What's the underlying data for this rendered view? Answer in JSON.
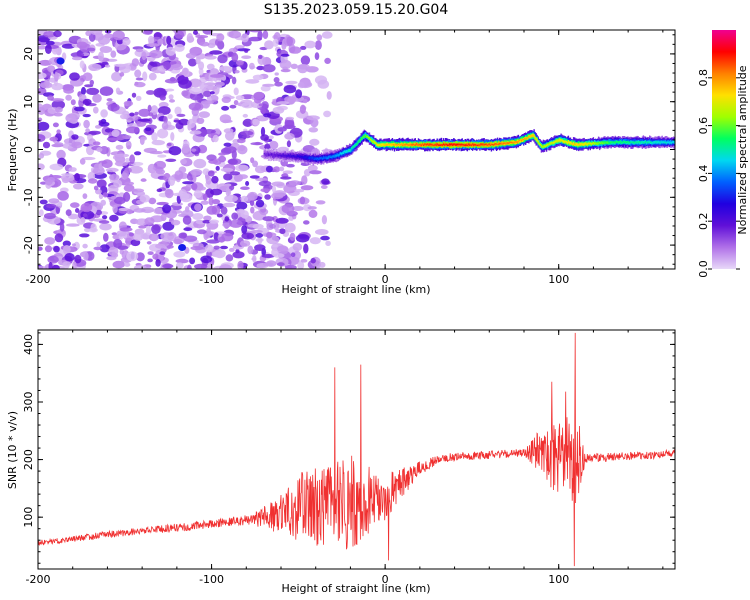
{
  "figure": {
    "title": "S135.2023.059.15.20.G04"
  },
  "chart_data": [
    {
      "type": "heatmap",
      "xlabel": "Height of straight line (km)",
      "ylabel": "Frequency (Hz)",
      "xlim": [
        -200,
        167
      ],
      "ylim": [
        -25,
        25
      ],
      "xticks": [
        -200,
        -100,
        0,
        100
      ],
      "yticks": [
        20,
        10,
        0,
        -10,
        -20
      ],
      "colorbar": {
        "label": "Normalized spectral amplitude",
        "range": [
          0.0,
          1.0
        ],
        "ticks": [
          "0.0",
          "0.2",
          "0.4",
          "0.6",
          "0.8"
        ],
        "colormap": [
          "#e8d8f8",
          "#b070e8",
          "#6010d8",
          "#2000e0",
          "#0060ff",
          "#00d8f0",
          "#00ff60",
          "#a0ff00",
          "#ffe000",
          "#ff8000",
          "#ff0000",
          "#f00090"
        ]
      },
      "noise_region_x": [
        -200,
        -32
      ],
      "ridge": [
        {
          "x": -70,
          "y": -1.0,
          "amp": 0.15
        },
        {
          "x": -50,
          "y": -1.5,
          "amp": 0.25
        },
        {
          "x": -40,
          "y": -2.0,
          "amp": 0.35
        },
        {
          "x": -30,
          "y": -1.5,
          "amp": 0.4
        },
        {
          "x": -20,
          "y": 0.0,
          "amp": 0.5
        },
        {
          "x": -12,
          "y": 3.0,
          "amp": 0.6
        },
        {
          "x": -5,
          "y": 1.0,
          "amp": 0.7
        },
        {
          "x": 0,
          "y": 1.0,
          "amp": 0.75
        },
        {
          "x": 20,
          "y": 1.0,
          "amp": 0.85
        },
        {
          "x": 40,
          "y": 1.0,
          "amp": 0.9
        },
        {
          "x": 60,
          "y": 1.0,
          "amp": 0.85
        },
        {
          "x": 75,
          "y": 1.5,
          "amp": 0.8
        },
        {
          "x": 85,
          "y": 3.0,
          "amp": 0.75
        },
        {
          "x": 90,
          "y": 0.5,
          "amp": 0.65
        },
        {
          "x": 100,
          "y": 2.0,
          "amp": 0.7
        },
        {
          "x": 110,
          "y": 1.0,
          "amp": 0.75
        },
        {
          "x": 130,
          "y": 1.5,
          "amp": 0.55
        },
        {
          "x": 150,
          "y": 1.5,
          "amp": 0.5
        },
        {
          "x": 167,
          "y": 1.5,
          "amp": 0.45
        }
      ]
    },
    {
      "type": "line",
      "xlabel": "Height of straight line (km)",
      "ylabel": "SNR (10 * v/v)",
      "xlim": [
        -200,
        167
      ],
      "ylim": [
        10,
        425
      ],
      "xticks": [
        -200,
        -100,
        0,
        100
      ],
      "yticks": [
        100,
        200,
        300,
        400
      ],
      "color": "#f03030",
      "series": [
        {
          "x": [
            -200,
            -180,
            -160,
            -140,
            -120,
            -100,
            -80,
            -70,
            -60,
            -50,
            -40,
            -30,
            -20,
            -10,
            0,
            10,
            20,
            30,
            40,
            60,
            80,
            90,
            95,
            100,
            105,
            110,
            115,
            130,
            150,
            167
          ],
          "values": [
            55,
            62,
            70,
            76,
            82,
            88,
            95,
            100,
            105,
            115,
            118,
            120,
            125,
            130,
            135,
            160,
            185,
            200,
            205,
            208,
            212,
            215,
            205,
            210,
            205,
            210,
            200,
            205,
            208,
            210
          ],
          "spread": [
            5,
            5,
            6,
            6,
            7,
            7,
            9,
            18,
            35,
            60,
            70,
            75,
            85,
            60,
            40,
            25,
            12,
            8,
            7,
            7,
            7,
            40,
            60,
            70,
            70,
            95,
            10,
            7,
            7,
            7
          ]
        }
      ],
      "spikes": [
        {
          "x": 109.5,
          "y": 420
        },
        {
          "x": 96,
          "y": 335
        },
        {
          "x": 104,
          "y": 318
        },
        {
          "x": -14,
          "y": 365
        },
        {
          "x": -29,
          "y": 360
        },
        {
          "x": 109,
          "y": 15
        },
        {
          "x": 2,
          "y": 25
        }
      ]
    }
  ]
}
